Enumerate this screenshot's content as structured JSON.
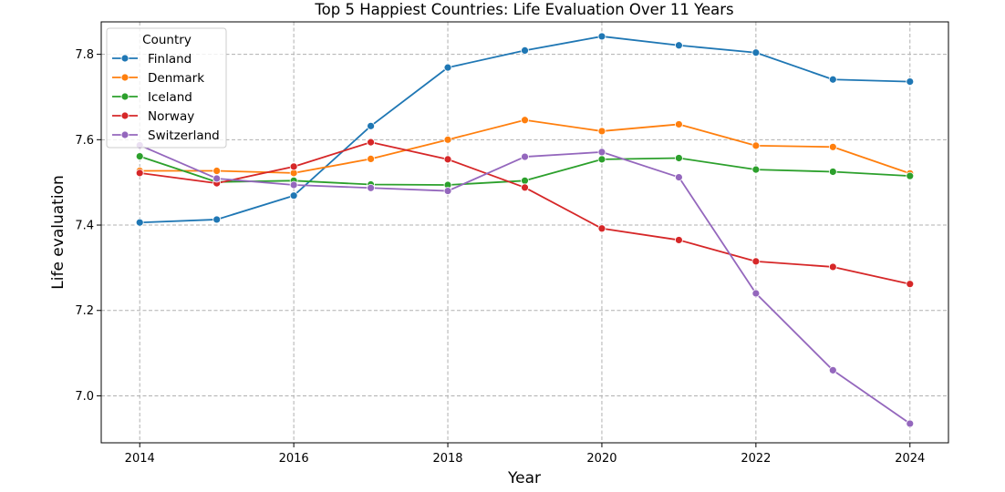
{
  "chart_data": {
    "type": "line",
    "title": "Top 5 Happiest Countries: Life Evaluation Over 11 Years",
    "xlabel": "Year",
    "ylabel": "Life evaluation",
    "x": [
      2014,
      2015,
      2016,
      2017,
      2018,
      2019,
      2020,
      2021,
      2022,
      2023,
      2024
    ],
    "xlim": [
      2013.5,
      2024.5
    ],
    "ylim": [
      6.89,
      7.876
    ],
    "xticks": [
      2014,
      2016,
      2018,
      2020,
      2022,
      2024
    ],
    "yticks": [
      7.0,
      7.2,
      7.4,
      7.6,
      7.8
    ],
    "ytick_labels": [
      "7.0",
      "7.2",
      "7.4",
      "7.6",
      "7.8"
    ],
    "grid": true,
    "legend_title": "Country",
    "legend_position": "top-left",
    "series": [
      {
        "name": "Finland",
        "color": "#1f77b4",
        "values": [
          7.406,
          7.413,
          7.469,
          7.632,
          7.769,
          7.809,
          7.842,
          7.821,
          7.804,
          7.741,
          7.736
        ]
      },
      {
        "name": "Denmark",
        "color": "#ff7f0e",
        "values": [
          7.527,
          7.527,
          7.522,
          7.555,
          7.6,
          7.646,
          7.62,
          7.636,
          7.586,
          7.583,
          7.521
        ]
      },
      {
        "name": "Iceland",
        "color": "#2ca02c",
        "values": [
          7.561,
          7.501,
          7.504,
          7.495,
          7.494,
          7.504,
          7.554,
          7.557,
          7.53,
          7.525,
          7.515
        ]
      },
      {
        "name": "Norway",
        "color": "#d62728",
        "values": [
          7.522,
          7.498,
          7.537,
          7.594,
          7.554,
          7.488,
          7.392,
          7.365,
          7.315,
          7.302,
          7.262
        ]
      },
      {
        "name": "Switzerland",
        "color": "#9467bd",
        "values": [
          7.587,
          7.509,
          7.494,
          7.487,
          7.48,
          7.56,
          7.571,
          7.512,
          7.24,
          7.06,
          6.935
        ]
      }
    ]
  }
}
